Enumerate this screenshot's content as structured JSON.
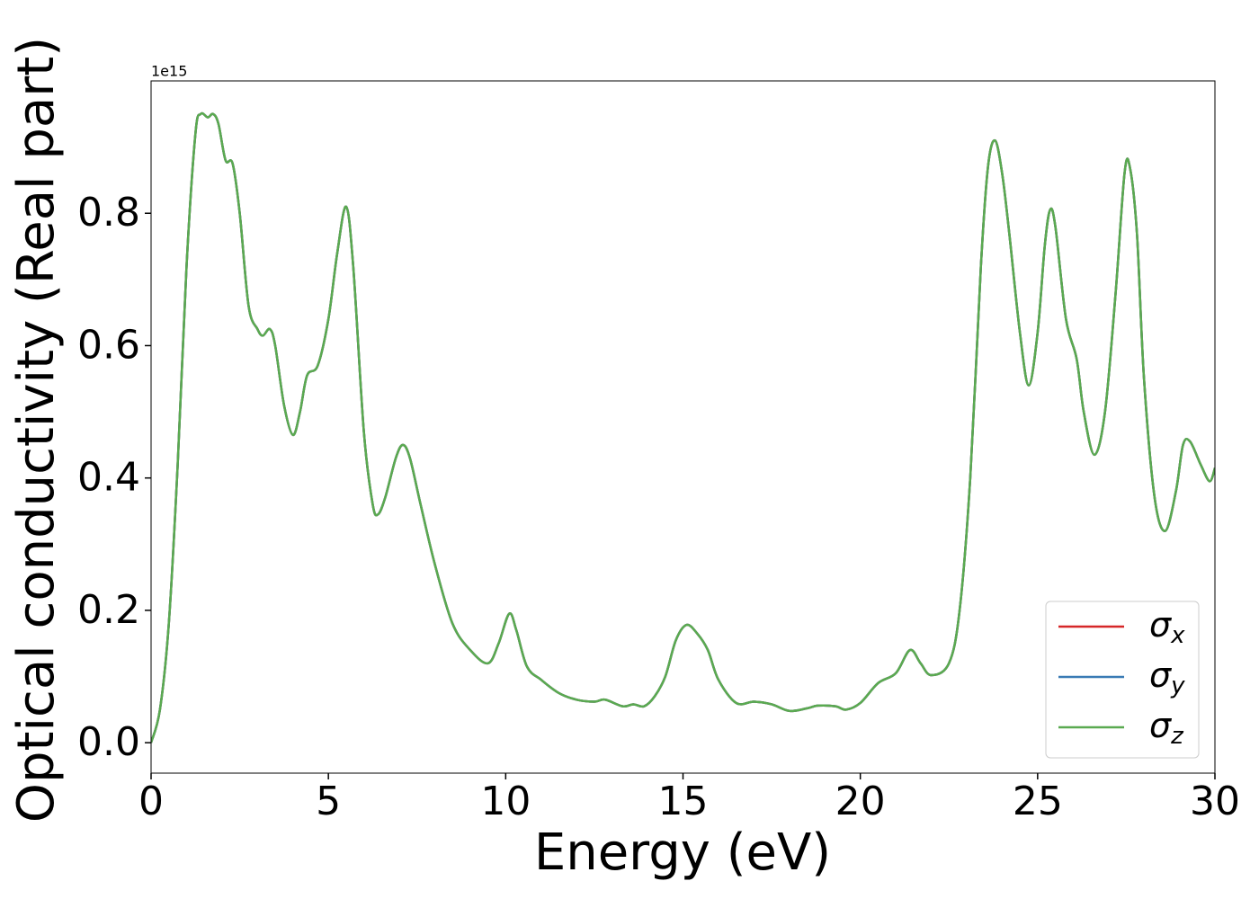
{
  "chart_data": {
    "type": "line",
    "x_label": "Energy (eV)",
    "y_label": "Optical conductivity (Real part)",
    "y_offset_label": "1e15",
    "x": [
      0,
      0.25,
      0.5,
      0.75,
      1.0,
      1.25,
      1.4,
      1.6,
      1.75,
      1.9,
      2.1,
      2.3,
      2.5,
      2.75,
      3.0,
      3.15,
      3.35,
      3.5,
      3.75,
      4.0,
      4.2,
      4.4,
      4.7,
      5.0,
      5.25,
      5.5,
      5.7,
      6.0,
      6.25,
      6.4,
      6.6,
      6.9,
      7.1,
      7.3,
      7.6,
      8.0,
      8.5,
      9.0,
      9.5,
      9.8,
      10.1,
      10.3,
      10.6,
      11.0,
      11.5,
      12.0,
      12.5,
      12.8,
      13.3,
      13.6,
      13.9,
      14.2,
      14.5,
      14.8,
      15.1,
      15.4,
      15.7,
      16.0,
      16.5,
      17.0,
      17.5,
      18.0,
      18.5,
      18.8,
      19.3,
      19.6,
      20.0,
      20.5,
      21.0,
      21.4,
      21.7,
      22.0,
      22.5,
      22.8,
      23.1,
      23.4,
      23.6,
      23.8,
      24.0,
      24.2,
      24.5,
      24.75,
      25.0,
      25.2,
      25.35,
      25.5,
      25.8,
      26.1,
      26.3,
      26.6,
      26.9,
      27.2,
      27.45,
      27.6,
      27.8,
      28.0,
      28.3,
      28.6,
      28.9,
      29.1,
      29.3,
      29.6,
      29.85,
      30.0
    ],
    "series": [
      {
        "name": "σx",
        "color": "#d62728",
        "values": [
          0,
          0.05,
          0.18,
          0.42,
          0.72,
          0.92,
          0.95,
          0.945,
          0.95,
          0.935,
          0.88,
          0.875,
          0.8,
          0.66,
          0.625,
          0.615,
          0.625,
          0.6,
          0.51,
          0.465,
          0.5,
          0.555,
          0.57,
          0.64,
          0.74,
          0.81,
          0.72,
          0.47,
          0.36,
          0.345,
          0.37,
          0.43,
          0.45,
          0.43,
          0.36,
          0.27,
          0.18,
          0.14,
          0.12,
          0.15,
          0.195,
          0.17,
          0.115,
          0.095,
          0.075,
          0.065,
          0.062,
          0.065,
          0.055,
          0.058,
          0.055,
          0.07,
          0.1,
          0.155,
          0.178,
          0.165,
          0.14,
          0.095,
          0.06,
          0.062,
          0.058,
          0.048,
          0.052,
          0.056,
          0.055,
          0.05,
          0.06,
          0.09,
          0.105,
          0.14,
          0.12,
          0.102,
          0.12,
          0.2,
          0.4,
          0.72,
          0.87,
          0.91,
          0.86,
          0.77,
          0.62,
          0.54,
          0.62,
          0.75,
          0.805,
          0.78,
          0.64,
          0.58,
          0.5,
          0.435,
          0.5,
          0.68,
          0.86,
          0.87,
          0.77,
          0.55,
          0.37,
          0.32,
          0.38,
          0.45,
          0.455,
          0.42,
          0.395,
          0.415
        ]
      },
      {
        "name": "σy",
        "color": "#3a7bb5",
        "values": [
          0,
          0.05,
          0.18,
          0.42,
          0.72,
          0.92,
          0.95,
          0.945,
          0.95,
          0.935,
          0.88,
          0.875,
          0.8,
          0.66,
          0.625,
          0.615,
          0.625,
          0.6,
          0.51,
          0.465,
          0.5,
          0.555,
          0.57,
          0.64,
          0.74,
          0.81,
          0.72,
          0.47,
          0.36,
          0.345,
          0.37,
          0.43,
          0.45,
          0.43,
          0.36,
          0.27,
          0.18,
          0.14,
          0.12,
          0.15,
          0.195,
          0.17,
          0.115,
          0.095,
          0.075,
          0.065,
          0.062,
          0.065,
          0.055,
          0.058,
          0.055,
          0.07,
          0.1,
          0.155,
          0.178,
          0.165,
          0.14,
          0.095,
          0.06,
          0.062,
          0.058,
          0.048,
          0.052,
          0.056,
          0.055,
          0.05,
          0.06,
          0.09,
          0.105,
          0.14,
          0.12,
          0.102,
          0.12,
          0.2,
          0.4,
          0.72,
          0.87,
          0.91,
          0.86,
          0.77,
          0.62,
          0.54,
          0.62,
          0.75,
          0.805,
          0.78,
          0.64,
          0.58,
          0.5,
          0.435,
          0.5,
          0.68,
          0.86,
          0.87,
          0.77,
          0.55,
          0.37,
          0.32,
          0.38,
          0.45,
          0.455,
          0.42,
          0.395,
          0.415
        ]
      },
      {
        "name": "σz",
        "color": "#5aaa50",
        "values": [
          0,
          0.05,
          0.18,
          0.42,
          0.72,
          0.92,
          0.95,
          0.945,
          0.95,
          0.935,
          0.88,
          0.875,
          0.8,
          0.66,
          0.625,
          0.615,
          0.625,
          0.6,
          0.51,
          0.465,
          0.5,
          0.555,
          0.57,
          0.64,
          0.74,
          0.81,
          0.72,
          0.47,
          0.36,
          0.345,
          0.37,
          0.43,
          0.45,
          0.43,
          0.36,
          0.27,
          0.18,
          0.14,
          0.12,
          0.15,
          0.195,
          0.17,
          0.115,
          0.095,
          0.075,
          0.065,
          0.062,
          0.065,
          0.055,
          0.058,
          0.055,
          0.07,
          0.1,
          0.155,
          0.178,
          0.165,
          0.14,
          0.095,
          0.06,
          0.062,
          0.058,
          0.048,
          0.052,
          0.056,
          0.055,
          0.05,
          0.06,
          0.09,
          0.105,
          0.14,
          0.12,
          0.102,
          0.12,
          0.2,
          0.4,
          0.72,
          0.87,
          0.91,
          0.86,
          0.77,
          0.62,
          0.54,
          0.62,
          0.75,
          0.805,
          0.78,
          0.64,
          0.58,
          0.5,
          0.435,
          0.5,
          0.68,
          0.86,
          0.87,
          0.77,
          0.55,
          0.37,
          0.32,
          0.38,
          0.45,
          0.455,
          0.42,
          0.395,
          0.415
        ]
      }
    ],
    "xlim": [
      0,
      30
    ],
    "xticks": [
      0,
      5,
      10,
      15,
      20,
      25,
      30
    ],
    "ylim": [
      -0.046,
      1.0
    ],
    "yticks": [
      {
        "value": 0,
        "label": "0.0"
      },
      0.2,
      0.4,
      0.6,
      0.8
    ],
    "grid": false,
    "legend": "lower right"
  }
}
